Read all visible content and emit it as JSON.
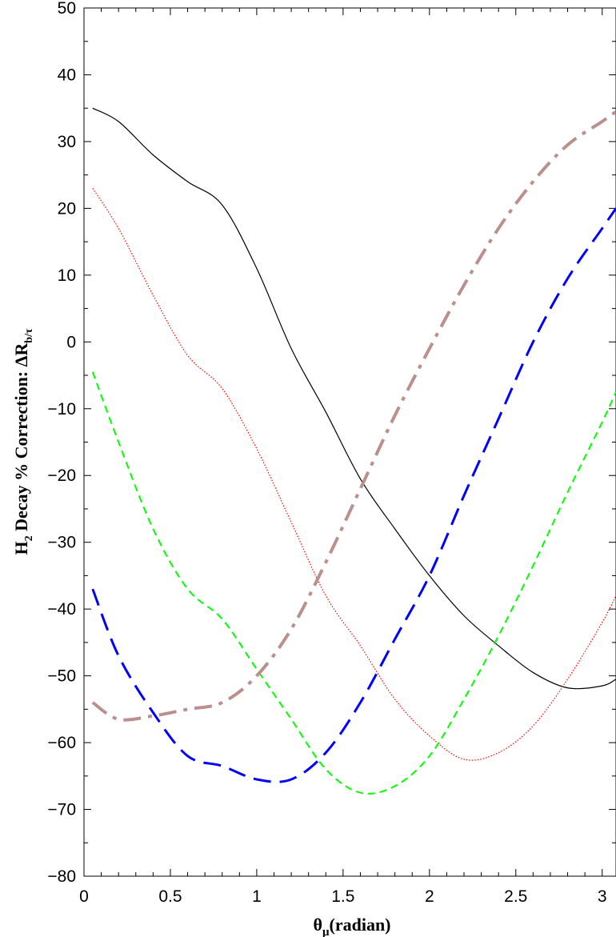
{
  "chart_data": {
    "type": "line",
    "title": "",
    "xlabel": "θ_μ(radian)",
    "xlabel_parts": {
      "base": "θ",
      "sub": "μ",
      "rest": "(radian)"
    },
    "ylabel": "H_2 Decay % Correction: ΔR_b/τ",
    "ylabel_parts": {
      "a": "H",
      "a_sub": "2",
      "b": " Decay % Correction:  ΔR",
      "b_sub": "b/τ"
    },
    "xlim": [
      0,
      3.08
    ],
    "ylim": [
      -80,
      50
    ],
    "xticks": [
      0,
      0.5,
      1,
      1.5,
      2,
      2.5,
      3
    ],
    "xtick_labels": [
      "0",
      "0.5",
      "1",
      "1.5",
      "2",
      "2.5",
      "3"
    ],
    "yticks": [
      -80,
      -70,
      -60,
      -50,
      -40,
      -30,
      -20,
      -10,
      0,
      10,
      20,
      30,
      40,
      50
    ],
    "ytick_labels": [
      "−80",
      "−70",
      "−60",
      "−50",
      "−40",
      "−30",
      "−20",
      "−10",
      "0",
      "10",
      "20",
      "30",
      "40",
      "50"
    ],
    "grid": false,
    "series": [
      {
        "color": "#000000",
        "style": "solid",
        "x": [
          0.05,
          0.2,
          0.4,
          0.6,
          0.8,
          1.0,
          1.2,
          1.4,
          1.6,
          1.8,
          2.0,
          2.2,
          2.4,
          2.6,
          2.8,
          3.0,
          3.08
        ],
        "y": [
          35,
          33,
          28,
          24,
          20.5,
          11,
          -1,
          -10.5,
          -20.5,
          -28,
          -35,
          -41,
          -45.5,
          -49.5,
          -51.8,
          -51.5,
          -50.5
        ]
      },
      {
        "color": "#ff0000",
        "style": "dotted",
        "x": [
          0.05,
          0.2,
          0.4,
          0.6,
          0.8,
          1.0,
          1.2,
          1.4,
          1.6,
          1.8,
          2.0,
          2.2,
          2.4,
          2.6,
          2.8,
          3.0,
          3.08
        ],
        "y": [
          23,
          17,
          7,
          -2,
          -7,
          -16,
          -27,
          -38,
          -45.5,
          -53.5,
          -59,
          -62.5,
          -61.5,
          -57.5,
          -50.5,
          -42,
          -38
        ]
      },
      {
        "color": "#00ff00",
        "style": "dashed",
        "x": [
          0.05,
          0.2,
          0.4,
          0.6,
          0.8,
          1.0,
          1.2,
          1.4,
          1.6,
          1.8,
          2.0,
          2.2,
          2.4,
          2.6,
          2.8,
          3.0,
          3.08
        ],
        "y": [
          -4.5,
          -15,
          -28,
          -37,
          -41.5,
          -49,
          -56.5,
          -64,
          -67.5,
          -66.5,
          -62,
          -53.5,
          -44,
          -33.5,
          -22.5,
          -12,
          -7.5
        ]
      },
      {
        "color": "#0000ff",
        "style": "longdash",
        "x": [
          0.05,
          0.2,
          0.4,
          0.6,
          0.8,
          1.0,
          1.2,
          1.4,
          1.6,
          1.8,
          2.0,
          2.2,
          2.4,
          2.6,
          2.8,
          3.0,
          3.08
        ],
        "y": [
          -37,
          -47,
          -55.5,
          -62,
          -63.5,
          -65.5,
          -65.5,
          -61.5,
          -54,
          -44.5,
          -35,
          -23,
          -11.5,
          0,
          9.5,
          17,
          20
        ]
      },
      {
        "color": "#bc8f8f",
        "style": "dashdot",
        "x": [
          0.05,
          0.2,
          0.4,
          0.6,
          0.8,
          1.0,
          1.2,
          1.4,
          1.6,
          1.8,
          2.0,
          2.2,
          2.4,
          2.6,
          2.8,
          3.0,
          3.08
        ],
        "y": [
          -54,
          -56.5,
          -56,
          -55,
          -54,
          -50,
          -43,
          -33,
          -22,
          -11,
          -1,
          8.5,
          17,
          24,
          29.5,
          33,
          34.5
        ]
      }
    ]
  }
}
